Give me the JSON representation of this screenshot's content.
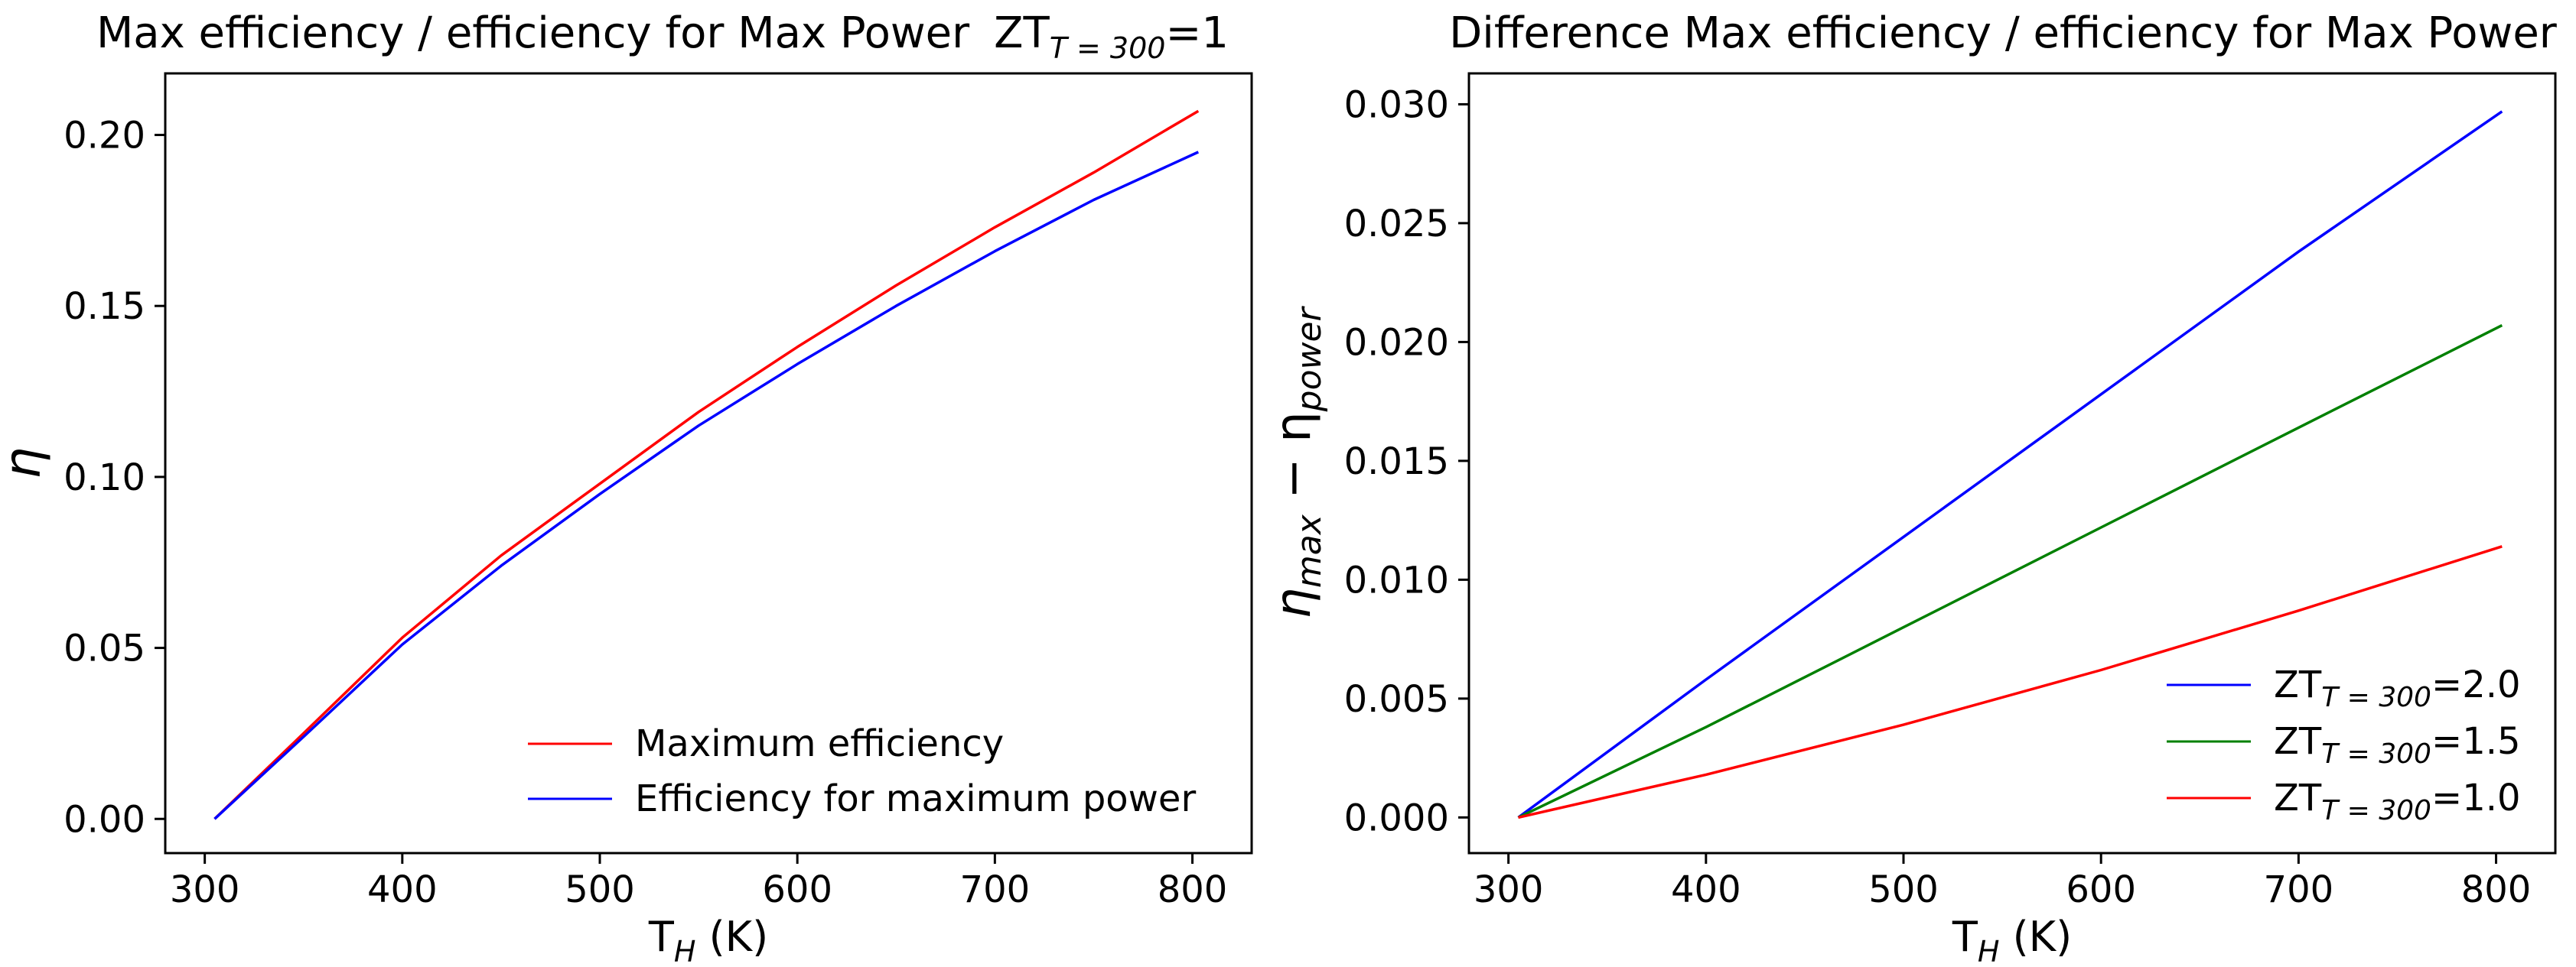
{
  "chart_data": [
    {
      "type": "line",
      "title": "Max efficiency / efficiency for Max Power",
      "title_suffix": {
        "prefix": "ZT",
        "sub": "T = 300",
        "suffix": "=1"
      },
      "xlabel": {
        "main": "T",
        "sub": "H",
        "tail": " (K)"
      },
      "ylabel": "η",
      "xlim": [
        280,
        830
      ],
      "ylim": [
        -0.01,
        0.218
      ],
      "xticks": [
        300,
        400,
        500,
        600,
        700,
        800
      ],
      "yticks": [
        0.0,
        0.05,
        0.1,
        0.15,
        0.2
      ],
      "ytick_labels": [
        "0.00",
        "0.05",
        "0.10",
        "0.15",
        "0.20"
      ],
      "legend_position": "lower-right",
      "series": [
        {
          "name": "Maximum efficiency",
          "color": "#ff0000",
          "x": [
            305,
            350,
            400,
            450,
            500,
            550,
            600,
            650,
            700,
            750,
            803
          ],
          "y": [
            0.0,
            0.025,
            0.053,
            0.077,
            0.098,
            0.119,
            0.138,
            0.156,
            0.173,
            0.189,
            0.207
          ]
        },
        {
          "name": "Efficiency for maximum power",
          "color": "#0000ff",
          "x": [
            305,
            350,
            400,
            450,
            500,
            550,
            600,
            650,
            700,
            750,
            803
          ],
          "y": [
            0.0,
            0.024,
            0.051,
            0.074,
            0.095,
            0.115,
            0.133,
            0.15,
            0.166,
            0.181,
            0.195
          ]
        }
      ]
    },
    {
      "type": "line",
      "title": "Difference Max efficiency / efficiency for Max Power",
      "xlabel": {
        "main": "T",
        "sub": "H",
        "tail": " (K)"
      },
      "ylabel": {
        "main": "η",
        "sub1": "max",
        "mid": " − η",
        "sub2": "power"
      },
      "xlim": [
        280,
        830
      ],
      "ylim": [
        -0.0015,
        0.0313
      ],
      "xticks": [
        300,
        400,
        500,
        600,
        700,
        800
      ],
      "yticks": [
        0.0,
        0.005,
        0.01,
        0.015,
        0.02,
        0.025,
        0.03
      ],
      "ytick_labels": [
        "0.000",
        "0.005",
        "0.010",
        "0.015",
        "0.020",
        "0.025",
        "0.030"
      ],
      "legend_position": "lower-right",
      "series": [
        {
          "name": "ZT_{T=300}=2.0",
          "label": {
            "prefix": "ZT",
            "sub": "T = 300",
            "suffix": "=2.0"
          },
          "color": "#0000ff",
          "x": [
            305,
            400,
            500,
            600,
            700,
            803
          ],
          "y": [
            0.0,
            0.0058,
            0.0118,
            0.0178,
            0.0238,
            0.0297
          ]
        },
        {
          "name": "ZT_{T=300}=1.5",
          "label": {
            "prefix": "ZT",
            "sub": "T = 300",
            "suffix": "=1.5"
          },
          "color": "#008000",
          "x": [
            305,
            400,
            500,
            600,
            700,
            803
          ],
          "y": [
            0.0,
            0.0038,
            0.008,
            0.0122,
            0.0164,
            0.0207
          ]
        },
        {
          "name": "ZT_{T=300}=1.0",
          "label": {
            "prefix": "ZT",
            "sub": "T = 300",
            "suffix": "=1.0"
          },
          "color": "#ff0000",
          "x": [
            305,
            400,
            500,
            600,
            700,
            803
          ],
          "y": [
            0.0,
            0.0018,
            0.0039,
            0.0062,
            0.0087,
            0.0114
          ]
        }
      ]
    }
  ]
}
